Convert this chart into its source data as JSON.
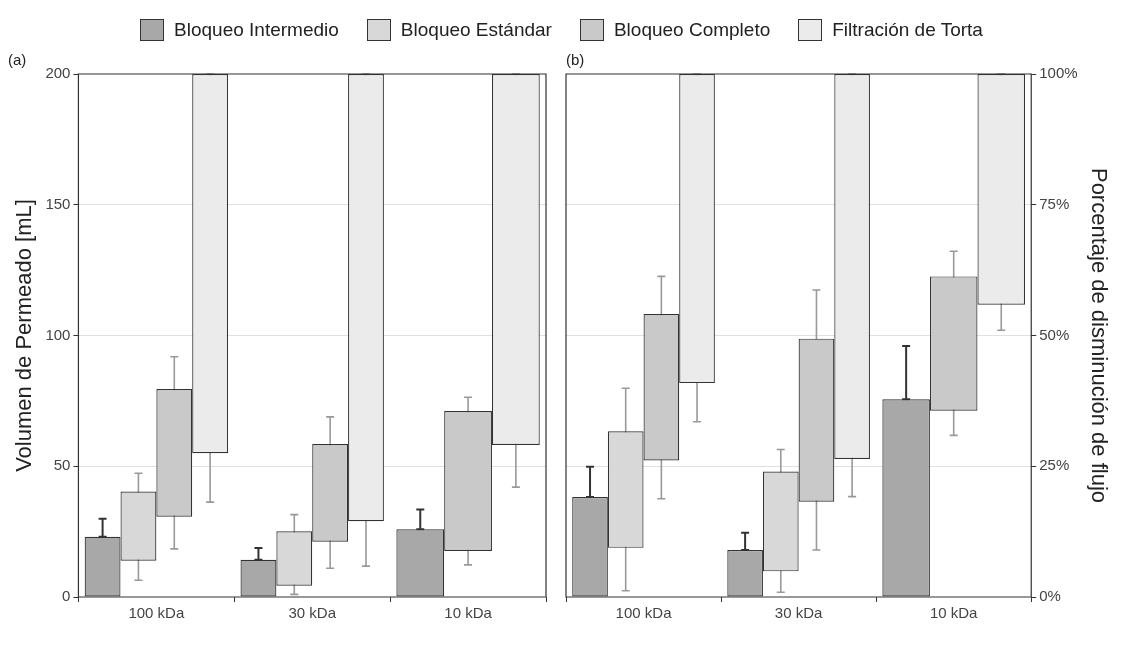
{
  "chart_data": [
    {
      "type": "bar",
      "title": "(a)",
      "ylabel": "Volumen de Permeado [mL]",
      "categories": [
        "100 kDa",
        "30 kDa",
        "10 kDa"
      ],
      "ylim": [
        0,
        200
      ],
      "yticks": [
        0,
        50,
        100,
        150,
        200
      ],
      "grid": "y",
      "legend": "top",
      "series": [
        {
          "name": "Bloqueo Intermedio",
          "color": "#a8a8a8",
          "base": [
            0,
            0,
            0
          ],
          "values": [
            23.0,
            14.2,
            25.9
          ],
          "errors": [
            [
              23.0,
              29.9
            ],
            [
              14.2,
              18.7
            ],
            [
              25.9,
              33.5
            ]
          ]
        },
        {
          "name": "Bloqueo Estándar",
          "color": "#d8d8d8",
          "base": [
            13.9,
            4.3,
            null
          ],
          "values": [
            26.4,
            20.8,
            null
          ],
          "errors": [
            [
              6.4,
              47.3
            ],
            [
              1,
              31.5
            ],
            null
          ]
        },
        {
          "name": "Bloqueo Completo",
          "color": "#c9c9c9",
          "base": [
            30.7,
            21.1,
            17.6
          ],
          "values": [
            48.8,
            37.4,
            53.5
          ],
          "errors": [
            [
              18.4,
              91.9
            ],
            [
              11.0,
              68.9
            ],
            [
              12.3,
              76.4
            ]
          ]
        },
        {
          "name": "Filtración de Torta",
          "color": "#ebebeb",
          "base": [
            55.0,
            29.0,
            58.1
          ],
          "values": [
            145.0,
            171.0,
            141.9
          ],
          "errors": [
            [
              36.3,
              200
            ],
            [
              11.8,
              200
            ],
            [
              42.0,
              200
            ]
          ]
        }
      ]
    },
    {
      "type": "bar",
      "title": "(b)",
      "y2label": "Porcentaje de disminución de flujo",
      "categories": [
        "100 kDa",
        "30 kDa",
        "10 kDa"
      ],
      "y2lim": [
        0,
        100
      ],
      "y2ticks": [
        {
          "value": 0,
          "label": "0%"
        },
        {
          "value": 25,
          "label": "25%"
        },
        {
          "value": 50,
          "label": "50%"
        },
        {
          "value": 75,
          "label": "75%"
        },
        {
          "value": 100,
          "label": "100%"
        }
      ],
      "grid": "y",
      "series": [
        {
          "color": "#a8a8a8",
          "axis": "y2",
          "base": [
            0,
            0,
            0
          ],
          "values": [
            19.1,
            9.0,
            37.8
          ],
          "errors": [
            [
              19.1,
              24.9
            ],
            [
              9.0,
              12.3
            ],
            [
              37.8,
              48.0
            ]
          ]
        },
        {
          "color": "#d8d8d8",
          "axis": "y2",
          "base": [
            9.4,
            4.9,
            null
          ],
          "values": [
            22.3,
            19.1,
            null
          ],
          "errors": [
            [
              1.2,
              39.9
            ],
            [
              0.9,
              28.2
            ],
            null
          ]
        },
        {
          "color": "#c9c9c9",
          "axis": "y2",
          "base": [
            26.1,
            18.2,
            35.6
          ],
          "values": [
            28.0,
            31.2,
            25.7
          ],
          "errors": [
            [
              18.8,
              61.3
            ],
            [
              9.0,
              58.7
            ],
            [
              30.9,
              66.1
            ]
          ]
        },
        {
          "color": "#ebebeb",
          "axis": "y2",
          "base": [
            40.9,
            26.4,
            55.9
          ],
          "values": [
            59.1,
            73.6,
            44.1
          ],
          "errors": [
            [
              33.5,
              100
            ],
            [
              19.2,
              100
            ],
            [
              51.0,
              100
            ]
          ]
        }
      ]
    }
  ]
}
